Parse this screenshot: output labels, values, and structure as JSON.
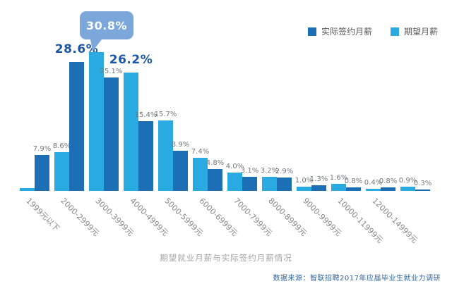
{
  "colors": {
    "background": "#FFFFFF",
    "expected": "#29ABE2",
    "actual": "#1C6FB5",
    "highlight_text": "#1B57A6",
    "callout_bubble": "#7CA7DB",
    "value_label": "#75777A",
    "category_label": "#8A8A8A",
    "title_text": "#A3A3A3",
    "source_text": "#2F6399"
  },
  "legend": {
    "items": [
      {
        "label": "实际签约月薪",
        "role": "actual",
        "color": "#1C6FB5"
      },
      {
        "label": "期望月薪",
        "role": "expected",
        "color": "#29ABE2"
      }
    ]
  },
  "caption": "期望就业月薪与实际签约月薪情况",
  "source": "数据来源：智联招聘2017年应届毕业生就业力调研",
  "chart_data": {
    "type": "bar",
    "title": "期望就业月薪与实际签约月薪情况",
    "legend_position": "top-right",
    "grid": false,
    "ylim": [
      0,
      32
    ],
    "categories": [
      "1999元以下",
      "2000-2999元",
      "3000-3999元",
      "4000-4999元",
      "5000-5999元",
      "6000-6999元",
      "7000-7999元",
      "8000-8999元",
      "9000-9999元",
      "10000-11999元",
      "12000-14999元",
      ""
    ],
    "series": [
      {
        "name": "期望月薪",
        "role": "expected",
        "values": [
          0.6,
          8.6,
          30.8,
          26.2,
          15.7,
          7.4,
          4.0,
          3.2,
          1.0,
          1.6,
          0.4,
          0.9
        ],
        "labels": [
          "",
          "8.6%",
          "30.8%",
          "26.2%",
          "15.7%",
          "7.4%",
          "4.0%",
          "3.2%",
          "1.0%",
          "1.6%",
          "0.4%",
          "0.9%"
        ],
        "label_styles": [
          "none",
          "normal",
          "callout",
          "bold",
          "normal",
          "normal",
          "normal",
          "normal",
          "normal",
          "normal",
          "normal",
          "normal"
        ]
      },
      {
        "name": "实际签约月薪",
        "role": "actual",
        "values": [
          7.9,
          28.6,
          25.1,
          15.4,
          8.9,
          4.8,
          3.1,
          2.9,
          1.3,
          0.8,
          0.8,
          0.3
        ],
        "labels": [
          "7.9%",
          "28.6%",
          "25.1%",
          "15.4%",
          "8.9%",
          "4.8%",
          "3.1%",
          "2.9%",
          "1.3%",
          "0.8%",
          "0.8%",
          "0.3%"
        ],
        "label_styles": [
          "normal",
          "bold",
          "normal",
          "normal",
          "normal",
          "normal",
          "normal",
          "normal",
          "normal",
          "normal",
          "normal",
          "normal"
        ]
      }
    ]
  }
}
